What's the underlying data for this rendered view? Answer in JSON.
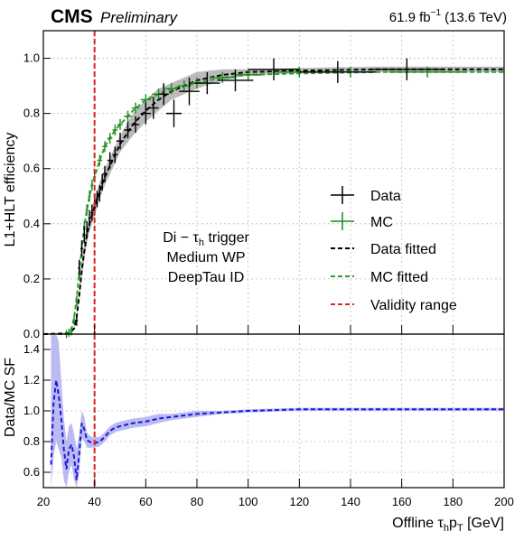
{
  "header": {
    "experiment": "CMS",
    "status": "Preliminary",
    "lumi": "61.9 fb",
    "lumi_exp": "−1",
    "energy": "(13.6 TeV)"
  },
  "annotation": {
    "line1": "Di − τ",
    "line1_sub": "h",
    "line1_tail": " trigger",
    "line2": "Medium WP",
    "line3": "DeepTau ID"
  },
  "legend": {
    "data": "Data",
    "mc": "MC",
    "data_fit": "Data fitted",
    "mc_fit": "MC fitted",
    "validity": "Validity range"
  },
  "axes": {
    "x_label_pre": "Offline τ",
    "x_label_sub1": "h",
    "x_label_mid": "p",
    "x_label_sub2": "T",
    "x_label_post": " [GeV]",
    "y_top_label": "L1+HLT efficiency",
    "y_bottom_label": "Data/MC SF"
  },
  "colors": {
    "data": "#000000",
    "mc": "#1a8c1a",
    "data_fit": "#000000",
    "mc_fit": "#2e9e2e",
    "validity": "#e02020",
    "sf": "#1a1adc",
    "sf_band": "#b4b4f0",
    "data_band": "#a9a9a9"
  },
  "chart_data": [
    {
      "type": "scatter",
      "panel": "efficiency",
      "xlim": [
        20,
        200
      ],
      "ylim": [
        0,
        1.1
      ],
      "x_ticks": [
        20,
        40,
        60,
        80,
        100,
        120,
        140,
        160,
        180,
        200
      ],
      "y_ticks": [
        "0.0",
        "0.2",
        "0.4",
        "0.6",
        "0.8",
        "1.0"
      ],
      "y_tick_values": [
        0,
        0.2,
        0.4,
        0.6,
        0.8,
        1.0
      ],
      "validity_x": 40,
      "series": [
        {
          "name": "Data",
          "x": [
            33,
            34,
            35,
            36,
            37,
            38,
            39,
            40,
            41,
            42,
            43,
            44,
            46,
            48,
            50,
            53,
            56,
            60,
            63,
            67,
            71,
            77,
            84,
            95,
            110,
            135,
            162
          ],
          "xerr": [
            0.5,
            0.5,
            0.5,
            0.5,
            0.5,
            0.5,
            0.5,
            0.5,
            0.5,
            0.5,
            0.5,
            1,
            1,
            1,
            1.5,
            1.5,
            1.5,
            2,
            2,
            2,
            3,
            4,
            5,
            7,
            10,
            15,
            15
          ],
          "y": [
            0.05,
            0.24,
            0.31,
            0.36,
            0.38,
            0.42,
            0.44,
            0.46,
            0.49,
            0.51,
            0.55,
            0.58,
            0.63,
            0.65,
            0.7,
            0.74,
            0.76,
            0.8,
            0.82,
            0.87,
            0.8,
            0.88,
            0.91,
            0.92,
            0.96,
            0.95,
            0.96
          ],
          "yerr": [
            0.01,
            0.02,
            0.02,
            0.02,
            0.02,
            0.02,
            0.02,
            0.02,
            0.02,
            0.02,
            0.02,
            0.02,
            0.02,
            0.02,
            0.02,
            0.02,
            0.02,
            0.03,
            0.03,
            0.03,
            0.04,
            0.04,
            0.03,
            0.03,
            0.03,
            0.03,
            0.03
          ]
        },
        {
          "name": "MC",
          "x": [
            29,
            30,
            31,
            32,
            33,
            34,
            35,
            36,
            37,
            38,
            39,
            40,
            42,
            44,
            46,
            48,
            50,
            53,
            56,
            60,
            65,
            70,
            75,
            80,
            90,
            100,
            120,
            140,
            170
          ],
          "xerr": [
            0.5,
            0.5,
            0.5,
            0.5,
            0.5,
            0.5,
            0.5,
            0.5,
            0.5,
            0.5,
            0.5,
            0.5,
            1,
            1,
            1,
            1,
            1,
            1.5,
            1.5,
            2,
            2.5,
            2.5,
            2.5,
            2.5,
            5,
            5,
            10,
            10,
            15
          ],
          "y": [
            0.0,
            0.005,
            0.01,
            0.05,
            0.12,
            0.22,
            0.31,
            0.39,
            0.45,
            0.5,
            0.54,
            0.57,
            0.63,
            0.68,
            0.71,
            0.74,
            0.76,
            0.79,
            0.82,
            0.85,
            0.87,
            0.89,
            0.9,
            0.91,
            0.93,
            0.94,
            0.95,
            0.95,
            0.95
          ],
          "yerr": [
            0.005,
            0.005,
            0.005,
            0.005,
            0.01,
            0.01,
            0.01,
            0.01,
            0.01,
            0.01,
            0.01,
            0.01,
            0.01,
            0.01,
            0.01,
            0.01,
            0.01,
            0.01,
            0.01,
            0.01,
            0.01,
            0.01,
            0.01,
            0.01,
            0.01,
            0.01,
            0.01,
            0.01,
            0.01
          ]
        },
        {
          "name": "Data fitted",
          "x": [
            20,
            30,
            32,
            33,
            34,
            35,
            36,
            37,
            38,
            39,
            40,
            42,
            44,
            46,
            48,
            50,
            55,
            60,
            65,
            70,
            80,
            90,
            100,
            120,
            150,
            200
          ],
          "y": [
            0,
            0.003,
            0.02,
            0.06,
            0.14,
            0.23,
            0.3,
            0.36,
            0.4,
            0.43,
            0.46,
            0.52,
            0.57,
            0.61,
            0.65,
            0.69,
            0.76,
            0.81,
            0.85,
            0.88,
            0.92,
            0.94,
            0.95,
            0.955,
            0.96,
            0.96
          ],
          "band_lo": [
            0,
            0.001,
            0.015,
            0.05,
            0.12,
            0.2,
            0.27,
            0.33,
            0.37,
            0.4,
            0.43,
            0.49,
            0.54,
            0.58,
            0.62,
            0.66,
            0.72,
            0.77,
            0.81,
            0.85,
            0.89,
            0.92,
            0.94,
            0.945,
            0.95,
            0.95
          ],
          "band_hi": [
            0,
            0.005,
            0.025,
            0.07,
            0.16,
            0.26,
            0.33,
            0.39,
            0.43,
            0.46,
            0.49,
            0.55,
            0.6,
            0.64,
            0.68,
            0.72,
            0.8,
            0.85,
            0.89,
            0.91,
            0.95,
            0.96,
            0.96,
            0.965,
            0.97,
            0.97
          ]
        },
        {
          "name": "MC fitted",
          "x": [
            20,
            28,
            30,
            31,
            32,
            33,
            34,
            35,
            36,
            37,
            38,
            39,
            40,
            42,
            44,
            46,
            48,
            50,
            55,
            60,
            65,
            70,
            80,
            90,
            100,
            120,
            150,
            200
          ],
          "y": [
            0,
            0.0,
            0.004,
            0.02,
            0.06,
            0.13,
            0.22,
            0.31,
            0.39,
            0.45,
            0.5,
            0.54,
            0.57,
            0.63,
            0.68,
            0.71,
            0.74,
            0.76,
            0.81,
            0.85,
            0.87,
            0.89,
            0.91,
            0.93,
            0.94,
            0.945,
            0.95,
            0.95
          ]
        }
      ]
    },
    {
      "type": "line",
      "panel": "scale-factor",
      "xlim": [
        20,
        200
      ],
      "ylim": [
        0.5,
        1.5
      ],
      "x_ticks": [
        20,
        40,
        60,
        80,
        100,
        120,
        140,
        160,
        180,
        200
      ],
      "y_ticks": [
        "0.6",
        "0.8",
        "1.0",
        "1.2",
        "1.4"
      ],
      "y_tick_values": [
        0.6,
        0.8,
        1.0,
        1.2,
        1.4
      ],
      "validity_x": 40,
      "series": [
        {
          "name": "SF",
          "x": [
            23,
            24,
            25,
            26,
            27,
            28,
            29,
            30,
            31,
            32,
            33,
            34,
            35,
            36,
            37,
            38,
            39,
            40,
            42,
            44,
            46,
            48,
            50,
            55,
            60,
            65,
            70,
            80,
            90,
            100,
            120,
            150,
            200
          ],
          "y": [
            0.65,
            1.05,
            1.2,
            1.1,
            0.95,
            0.75,
            0.62,
            0.75,
            0.78,
            0.7,
            0.55,
            0.72,
            0.92,
            0.88,
            0.81,
            0.8,
            0.79,
            0.79,
            0.8,
            0.83,
            0.87,
            0.89,
            0.9,
            0.92,
            0.93,
            0.95,
            0.96,
            0.98,
            0.99,
            1.0,
            1.01,
            1.01,
            1.01
          ],
          "band_lo": [
            0.5,
            0.7,
            0.8,
            0.75,
            0.7,
            0.55,
            0.5,
            0.6,
            0.65,
            0.55,
            0.5,
            0.6,
            0.82,
            0.8,
            0.76,
            0.76,
            0.76,
            0.76,
            0.77,
            0.8,
            0.84,
            0.86,
            0.87,
            0.89,
            0.9,
            0.92,
            0.94,
            0.96,
            0.98,
            0.99,
            1.0,
            1.0,
            1.0
          ],
          "band_hi": [
            1.5,
            1.5,
            1.5,
            1.45,
            1.2,
            0.95,
            0.8,
            0.9,
            0.92,
            0.85,
            0.75,
            0.85,
            1.0,
            0.96,
            0.86,
            0.84,
            0.83,
            0.83,
            0.83,
            0.86,
            0.9,
            0.92,
            0.93,
            0.95,
            0.96,
            0.98,
            0.98,
            1.0,
            1.0,
            1.01,
            1.02,
            1.02,
            1.02
          ]
        }
      ]
    }
  ]
}
